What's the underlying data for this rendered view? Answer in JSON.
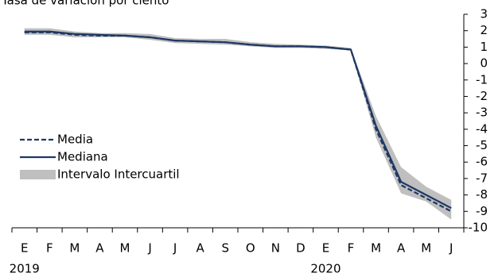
{
  "chart_data": {
    "type": "line",
    "title": "Tasa de variación por ciento",
    "categories": [
      "E",
      "F",
      "M",
      "A",
      "M",
      "J",
      "J",
      "A",
      "S",
      "O",
      "N",
      "D",
      "E",
      "F",
      "M",
      "A",
      "M",
      "J"
    ],
    "year_labels": [
      "2019",
      null,
      null,
      null,
      null,
      null,
      null,
      null,
      null,
      null,
      null,
      null,
      "2020",
      null,
      null,
      null,
      null,
      null
    ],
    "series": [
      {
        "name": "Media",
        "color": "#1f3864",
        "dashed": true,
        "values": [
          1.9,
          1.9,
          1.75,
          1.7,
          1.7,
          1.6,
          1.4,
          1.35,
          1.3,
          1.15,
          1.05,
          1.05,
          1.0,
          0.85,
          -4.0,
          -7.4,
          -8.2,
          -9.0
        ]
      },
      {
        "name": "Mediana",
        "color": "#1f3864",
        "dashed": false,
        "values": [
          1.95,
          1.95,
          1.8,
          1.75,
          1.7,
          1.6,
          1.4,
          1.35,
          1.3,
          1.15,
          1.05,
          1.05,
          1.0,
          0.85,
          -3.8,
          -7.2,
          -8.0,
          -8.8
        ]
      }
    ],
    "band": {
      "name": "Intervalo Intercuartil",
      "color": "#bfbfbf",
      "low": [
        1.75,
        1.75,
        1.6,
        1.6,
        1.6,
        1.45,
        1.25,
        1.2,
        1.15,
        1.05,
        0.95,
        0.95,
        0.9,
        0.8,
        -4.5,
        -7.9,
        -8.4,
        -9.5
      ],
      "high": [
        2.15,
        2.15,
        1.95,
        1.85,
        1.85,
        1.8,
        1.55,
        1.5,
        1.5,
        1.3,
        1.2,
        1.15,
        1.1,
        0.95,
        -3.2,
        -6.3,
        -7.5,
        -8.3
      ]
    },
    "ylim": [
      -10,
      3
    ],
    "yticks": [
      -10,
      -9,
      -8,
      -7,
      -6,
      -5,
      -4,
      -3,
      -2,
      -1,
      0,
      1,
      2,
      3
    ],
    "y_axis_side": "right",
    "legend": "left"
  }
}
